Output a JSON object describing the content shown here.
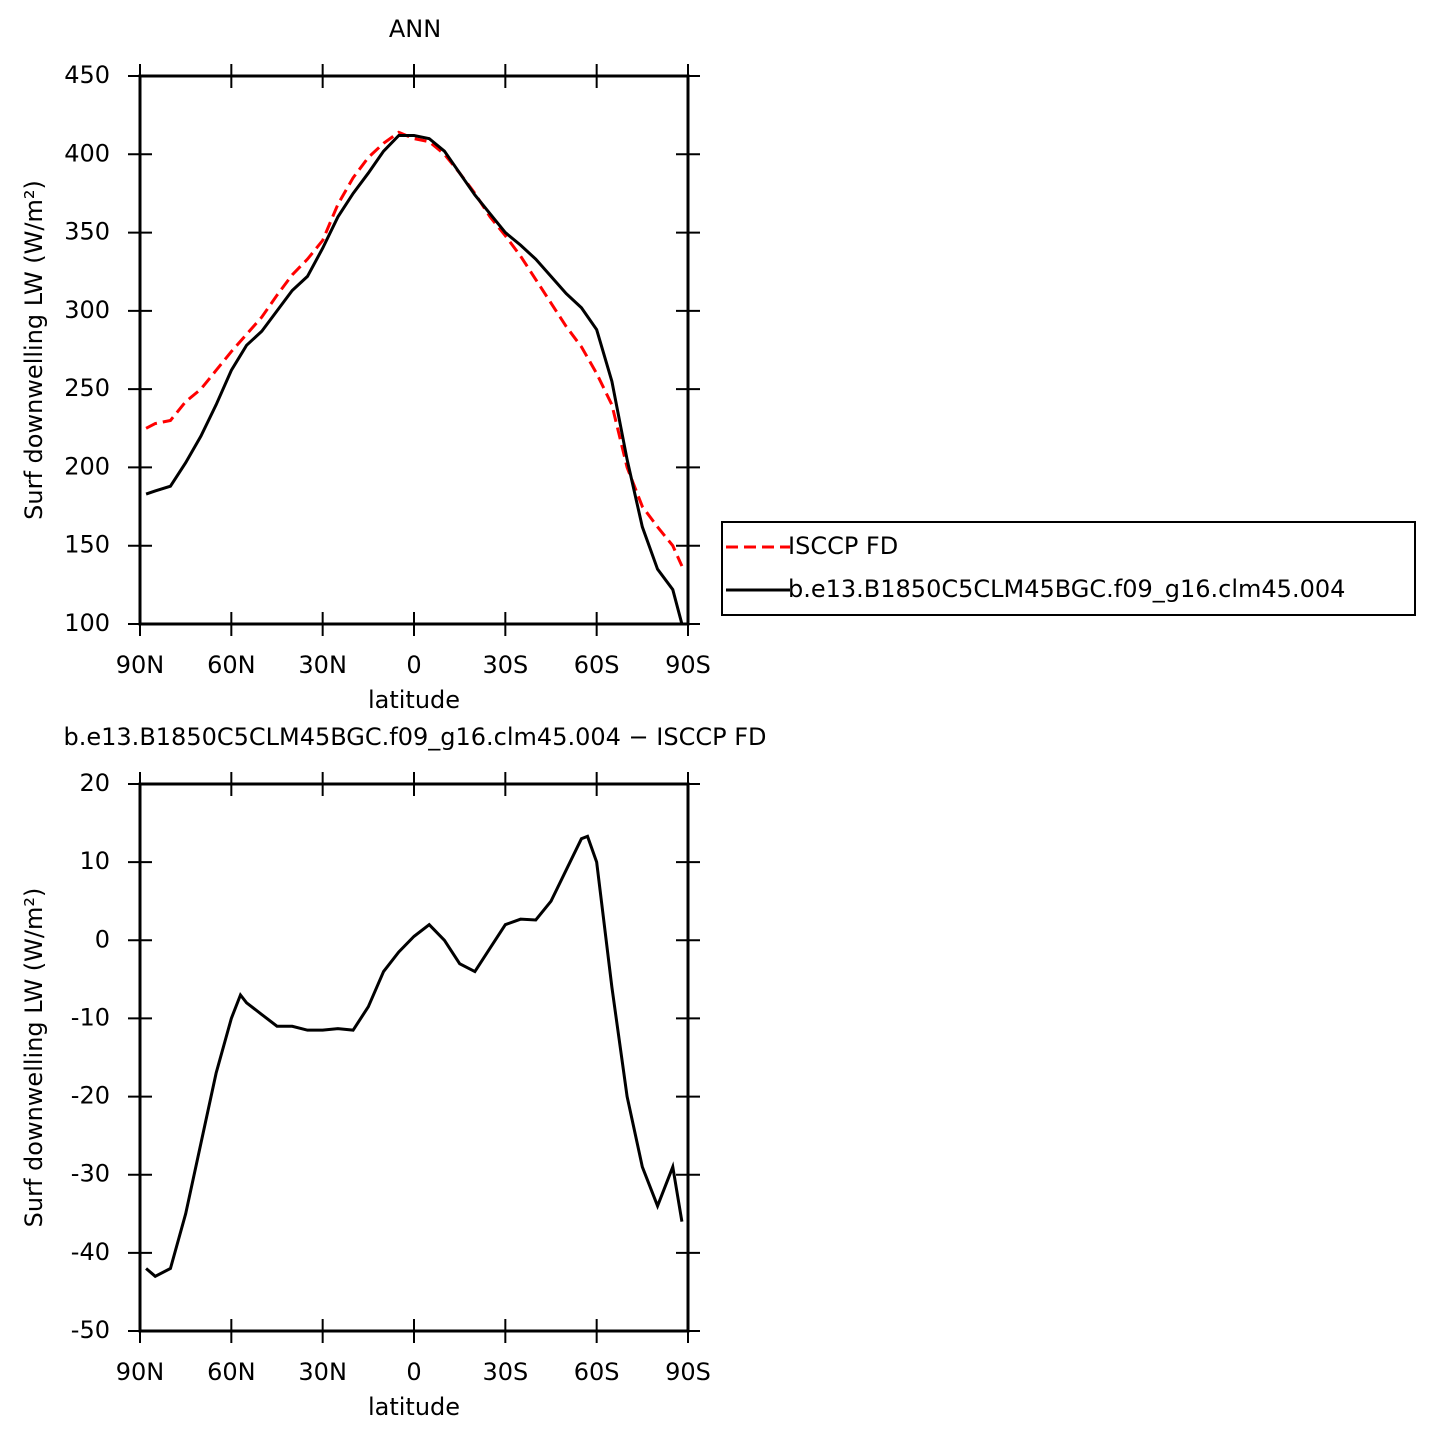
{
  "chart_data": [
    {
      "type": "line",
      "title": "ANN",
      "x_label": "latitude",
      "y_label": "Surf downwelling LW (W/m²)",
      "x": [
        88,
        85,
        80,
        75,
        70,
        65,
        60,
        55,
        50,
        45,
        40,
        35,
        30,
        25,
        20,
        15,
        10,
        5,
        0,
        -5,
        -10,
        -15,
        -20,
        -25,
        -30,
        -35,
        -40,
        -45,
        -50,
        -55,
        -60,
        -65,
        -70,
        -75,
        -80,
        -85,
        -88
      ],
      "series": [
        {
          "name": "ISCCP FD",
          "color": "#ff0000",
          "line_style": "dashed",
          "values": [
            225,
            228,
            230,
            242,
            250,
            262,
            274,
            285,
            296,
            310,
            323,
            333,
            345,
            368,
            385,
            398,
            407,
            414,
            410,
            408,
            400,
            388,
            375,
            360,
            348,
            335,
            320,
            305,
            290,
            277,
            260,
            240,
            200,
            175,
            162,
            150,
            137
          ]
        },
        {
          "name": "b.e13.B1850C5CLM45BGC.f09_g16.clm45.004",
          "color": "#000000",
          "line_style": "solid",
          "values": [
            183,
            185,
            188,
            203,
            220,
            240,
            262,
            278,
            287,
            300,
            313,
            322,
            340,
            360,
            375,
            388,
            402,
            412,
            412,
            410,
            402,
            388,
            374,
            362,
            350,
            342,
            333,
            322,
            311,
            302,
            288,
            255,
            205,
            162,
            135,
            122,
            100
          ]
        }
      ],
      "xlim": [
        90,
        -90
      ],
      "xticks": [
        {
          "value": 90,
          "label": "90N"
        },
        {
          "value": 60,
          "label": "60N"
        },
        {
          "value": 30,
          "label": "30N"
        },
        0,
        {
          "value": -30,
          "label": "30S"
        },
        {
          "value": -60,
          "label": "60S"
        },
        {
          "value": -90,
          "label": "90S"
        }
      ],
      "ylim": [
        100,
        450
      ],
      "yticks": [
        100,
        150,
        200,
        250,
        300,
        350,
        400,
        450
      ],
      "legend": "right"
    },
    {
      "type": "line",
      "title": "b.e13.B1850C5CLM45BGC.f09_g16.clm45.004 − ISCCP FD",
      "x_label": "latitude",
      "y_label": "Surf downwelling LW (W/m²)",
      "x": [
        88,
        85,
        80,
        75,
        70,
        65,
        60,
        57,
        55,
        50,
        45,
        40,
        35,
        30,
        25,
        20,
        15,
        10,
        5,
        0,
        -5,
        -10,
        -15,
        -20,
        -25,
        -30,
        -35,
        -40,
        -45,
        -50,
        -55,
        -57,
        -60,
        -65,
        -70,
        -75,
        -80,
        -85,
        -88
      ],
      "series": [
        {
          "color": "#000000",
          "line_style": "solid",
          "values": [
            -42,
            -43,
            -42,
            -35,
            -26,
            -17,
            -10,
            -7,
            -8,
            -9.5,
            -11,
            -11,
            -11.5,
            -11.5,
            -11.3,
            -11.5,
            -8.5,
            -4,
            -1.5,
            0.5,
            2,
            0,
            -3,
            -4,
            -1,
            2,
            2.7,
            2.6,
            5,
            9,
            13,
            13.3,
            10,
            -6,
            -20,
            -29,
            -34,
            -29,
            -36
          ]
        }
      ],
      "xlim": [
        90,
        -90
      ],
      "xticks": [
        {
          "value": 90,
          "label": "90N"
        },
        {
          "value": 60,
          "label": "60N"
        },
        {
          "value": 30,
          "label": "30N"
        },
        0,
        {
          "value": -30,
          "label": "30S"
        },
        {
          "value": -60,
          "label": "60S"
        },
        {
          "value": -90,
          "label": "90S"
        }
      ],
      "ylim": [
        -50,
        20
      ],
      "yticks": [
        -50,
        -40,
        -30,
        -20,
        -10,
        0,
        10,
        20
      ]
    }
  ]
}
